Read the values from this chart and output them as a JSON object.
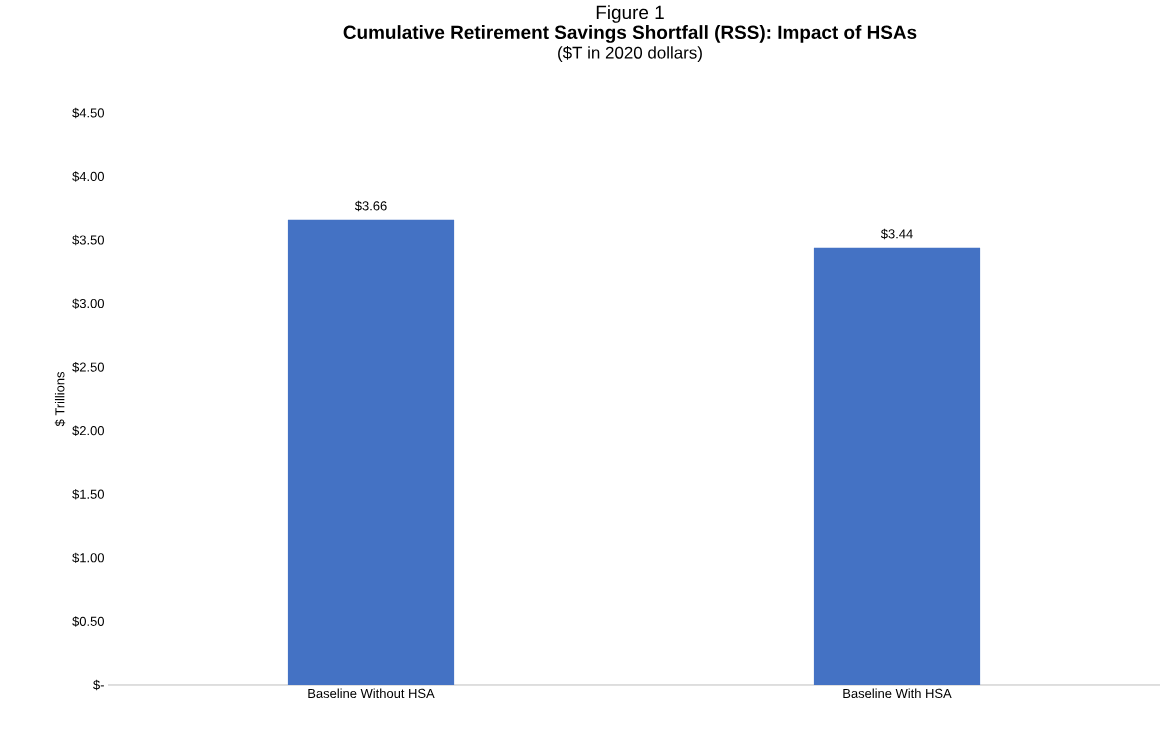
{
  "chart_data": {
    "type": "bar",
    "title": "Cumulative Retirement Savings Shortfall (RSS): Impact of HSAs",
    "subtitle": "($T in 2020 dollars)",
    "annotations": [
      "Figure 1"
    ],
    "ylabel": "$ Trillions",
    "categories": [
      "Baseline Without HSA",
      "Baseline With HSA"
    ],
    "values": [
      3.66,
      3.44
    ],
    "value_labels": [
      "$3.66",
      "$3.44"
    ],
    "color": "#4472c4",
    "ylim": [
      0,
      4.5
    ],
    "yticks": [
      {
        "value": 0,
        "label": "$-"
      },
      {
        "value": 0.5,
        "label": "$0.50"
      },
      {
        "value": 1,
        "label": "$1.00"
      },
      {
        "value": 1.5,
        "label": "$1.50"
      },
      {
        "value": 2,
        "label": "$2.00"
      },
      {
        "value": 2.5,
        "label": "$2.50"
      },
      {
        "value": 3,
        "label": "$3.00"
      },
      {
        "value": 3.5,
        "label": "$3.50"
      },
      {
        "value": 4,
        "label": "$4.00"
      },
      {
        "value": 4.5,
        "label": "$4.50"
      }
    ],
    "grid": false
  }
}
